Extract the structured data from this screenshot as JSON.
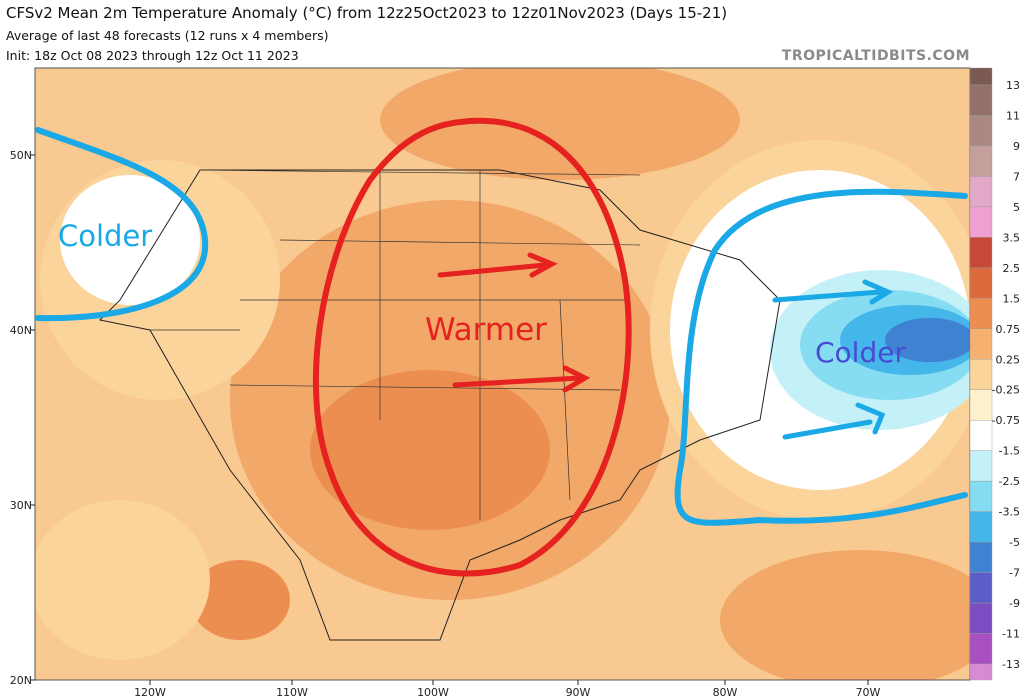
{
  "header": {
    "title": "CFSv2 Mean 2m Temperature Anomaly (°C) from 12z25Oct2023 to 12z01Nov2023 (Days 15-21)",
    "subtitle": "Average of last 48 forecasts (12 runs x 4 members)",
    "init": "Init: 18z Oct 08 2023 through 12z Oct 11 2023",
    "credit": "TROPICALTIDBITS.COM"
  },
  "map": {
    "lat_labels": [
      "50N",
      "40N",
      "30N",
      "20N"
    ],
    "lon_labels": [
      "120W",
      "110W",
      "100W",
      "90W",
      "80W",
      "70W"
    ],
    "annotations": [
      "Colder",
      "Warmer",
      "Colder"
    ]
  },
  "colorbar": {
    "labels": [
      "13",
      "11",
      "9",
      "7",
      "5",
      "3.5",
      "2.5",
      "1.5",
      "0.75",
      "0.25",
      "-0.25",
      "-0.75",
      "-1.5",
      "-2.5",
      "-3.5",
      "-5",
      "-7",
      "-9",
      "-11",
      "-13"
    ],
    "colors": [
      "#7a5a50",
      "#93706a",
      "#ab8882",
      "#c4a09c",
      "#e2a8c8",
      "#f0a0d0",
      "#c84838",
      "#dc6a3c",
      "#ec8e50",
      "#f6b070",
      "#fbd49c",
      "#fff0cc",
      "#ffffff",
      "#c4f0f8",
      "#86dcf0",
      "#44b6ea",
      "#3f82d2",
      "#5a5ec6",
      "#7c4cc2",
      "#a850c0",
      "#d98ad4"
    ]
  }
}
